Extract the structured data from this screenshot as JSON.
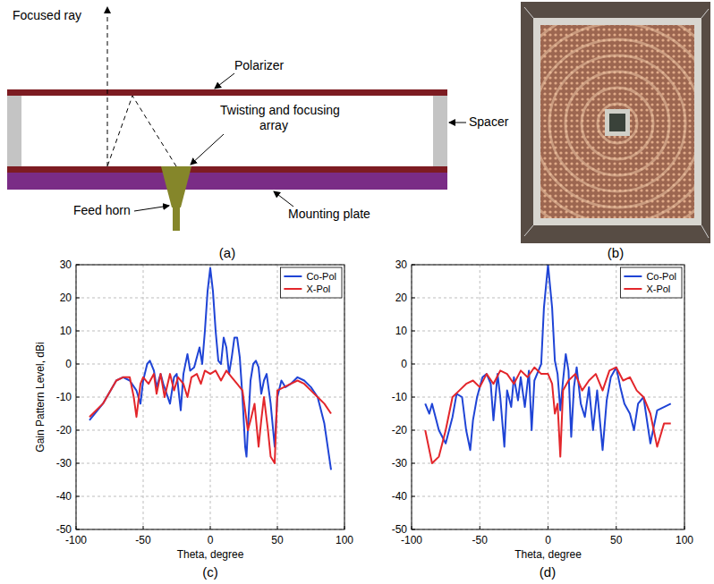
{
  "panel_labels": [
    "(a)",
    "(b)",
    "(c)",
    "(d)"
  ],
  "diagram": {
    "labels": {
      "focused_ray": "Focused ray",
      "polarizer": "Polarizer",
      "array": "Twisting and focusing array",
      "spacer": "Spacer",
      "feed_horn": "Feed horn",
      "mounting_plate": "Mounting plate"
    }
  },
  "chart_data": [
    {
      "type": "line",
      "x_label": "Theta, degree",
      "y_label": "Gain Pattern Level, dBi",
      "xlim": [
        -100,
        100
      ],
      "ylim": [
        -50,
        30
      ],
      "xticks": [
        -100,
        -50,
        0,
        50,
        100
      ],
      "yticks": [
        -50,
        -40,
        -30,
        -20,
        -10,
        0,
        10,
        20,
        30
      ],
      "grid": true,
      "legend": "upper right",
      "series": [
        {
          "name": "Co-Pol",
          "color": "#1f44d6",
          "x": [
            -90,
            -80,
            -70,
            -65,
            -60,
            -55,
            -52,
            -50,
            -47,
            -45,
            -42,
            -40,
            -37,
            -35,
            -30,
            -27,
            -25,
            -22,
            -20,
            -17,
            -15,
            -12,
            -10,
            -8,
            -6,
            -4,
            -2,
            0,
            2,
            4,
            6,
            8,
            10,
            12,
            14,
            16,
            18,
            20,
            22,
            24,
            26,
            27,
            28,
            30,
            32,
            34,
            36,
            38,
            40,
            42,
            45,
            48,
            50,
            53,
            56,
            60,
            65,
            70,
            75,
            80,
            85,
            90
          ],
          "values": [
            -17,
            -12,
            -5,
            -4,
            -5,
            -8,
            -12,
            -5,
            0,
            1,
            -2,
            -7,
            -3,
            -6,
            -12,
            -4,
            -3,
            -14,
            -3,
            3,
            -2,
            -1,
            2,
            5,
            0,
            10,
            22,
            29,
            22,
            10,
            1,
            0,
            8,
            5,
            -3,
            2,
            8,
            8,
            2,
            -10,
            -25,
            -28,
            -20,
            -5,
            0,
            1,
            -1,
            -9,
            -5,
            -3,
            -12,
            -25,
            -10,
            -5,
            -7,
            -6,
            -4,
            -5,
            -7,
            -10,
            -18,
            -32
          ]
        },
        {
          "name": "X-Pol",
          "color": "#e3262b",
          "x": [
            -90,
            -80,
            -70,
            -65,
            -60,
            -57,
            -55,
            -52,
            -50,
            -46,
            -42,
            -40,
            -37,
            -34,
            -30,
            -27,
            -24,
            -20,
            -17,
            -14,
            -10,
            -7,
            -4,
            0,
            4,
            8,
            12,
            16,
            20,
            24,
            26,
            28,
            30,
            33,
            36,
            38,
            40,
            43,
            45,
            48,
            50,
            55,
            60,
            65,
            70,
            75,
            80,
            85,
            90
          ],
          "values": [
            -16,
            -12,
            -5,
            -4,
            -4,
            -10,
            -16,
            -6,
            -4,
            -6,
            -3,
            -9,
            -3,
            -10,
            -3,
            -8,
            -4,
            -6,
            -10,
            -4,
            -3,
            -6,
            -2,
            -3,
            -2,
            -5,
            -2,
            -4,
            -6,
            -8,
            -14,
            -20,
            -17,
            -12,
            -25,
            -17,
            -10,
            -20,
            -28,
            -30,
            -8,
            -7,
            -6,
            -5,
            -6,
            -8,
            -10,
            -12,
            -15
          ]
        }
      ]
    },
    {
      "type": "line",
      "x_label": "Theta, degree",
      "xlim": [
        -100,
        100
      ],
      "ylim": [
        -50,
        30
      ],
      "xticks": [
        -100,
        -50,
        0,
        50,
        100
      ],
      "yticks": [
        -50,
        -40,
        -30,
        -20,
        -10,
        0,
        10,
        20,
        30
      ],
      "grid": true,
      "legend": "upper right",
      "series": [
        {
          "name": "Co-Pol",
          "color": "#1f44d6",
          "x": [
            -90,
            -87,
            -85,
            -80,
            -75,
            -70,
            -67,
            -63,
            -60,
            -57,
            -55,
            -52,
            -48,
            -45,
            -42,
            -40,
            -37,
            -35,
            -32,
            -30,
            -27,
            -25,
            -22,
            -20,
            -17,
            -14,
            -12,
            -10,
            -7,
            -5,
            -3,
            0,
            3,
            5,
            7,
            9,
            11,
            13,
            15,
            17,
            19,
            21,
            24,
            27,
            30,
            33,
            36,
            40,
            43,
            46,
            50,
            53,
            56,
            60,
            63,
            66,
            70,
            75,
            80,
            85,
            90
          ],
          "values": [
            -12,
            -15,
            -12,
            -20,
            -24,
            -16,
            -9,
            -10,
            -20,
            -26,
            -17,
            -10,
            -4,
            -3,
            -6,
            -17,
            -3,
            -10,
            -25,
            -8,
            -13,
            -4,
            -11,
            -4,
            -13,
            -2,
            -20,
            -5,
            -2,
            0,
            17,
            30,
            17,
            1,
            -3,
            -14,
            -5,
            3,
            -2,
            -22,
            -7,
            -1,
            -12,
            -16,
            -7,
            -20,
            -8,
            -26,
            -11,
            -4,
            -1,
            -7,
            -12,
            -15,
            -20,
            -12,
            -10,
            -24,
            -14,
            -13,
            -12
          ]
        },
        {
          "name": "X-Pol",
          "color": "#e3262b",
          "x": [
            -90,
            -85,
            -80,
            -75,
            -70,
            -65,
            -60,
            -55,
            -50,
            -45,
            -40,
            -35,
            -30,
            -25,
            -20,
            -15,
            -10,
            -5,
            0,
            3,
            5,
            7,
            9,
            11,
            15,
            20,
            25,
            30,
            35,
            40,
            45,
            50,
            55,
            60,
            65,
            70,
            75,
            80,
            85,
            90
          ],
          "values": [
            -20,
            -30,
            -28,
            -20,
            -10,
            -8,
            -6,
            -5,
            -7,
            -3,
            -6,
            -2,
            -3,
            -6,
            -2,
            -4,
            -1,
            -3,
            -3,
            -6,
            -15,
            -12,
            -28,
            -8,
            -5,
            -3,
            -8,
            -5,
            -3,
            -8,
            -2,
            -1,
            -5,
            -4,
            -8,
            -10,
            -15,
            -25,
            -18,
            -18
          ]
        }
      ]
    }
  ]
}
